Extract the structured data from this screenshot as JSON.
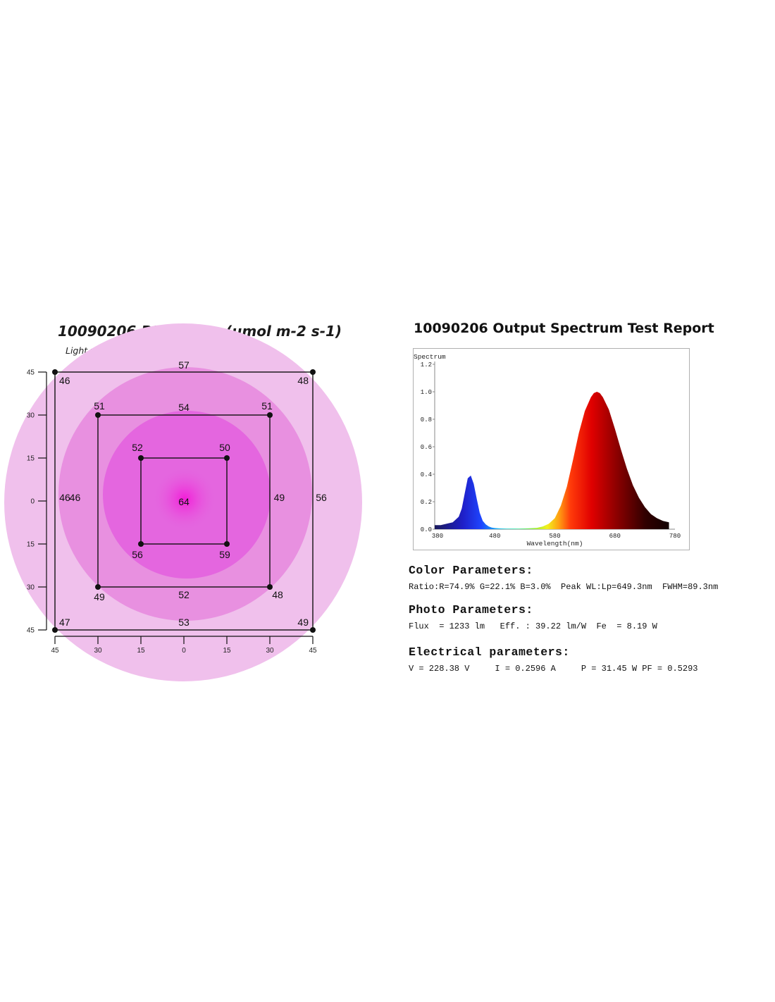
{
  "par_title": "10090206 PAR Value (umol m-2 s-1)",
  "par_subtitle": "Light was posilioned at 24\" heigt",
  "spectrum_title": "10090206 Output Spectrum Test Report",
  "color_parameters": {
    "heading": "Color Parameters:",
    "line": "Ratio:R=74.9% G=22.1% B=3.0%  Peak WL:Lp=649.3nm  FWHM=89.3nm"
  },
  "photo_parameters": {
    "heading": "Photo Parameters:",
    "line": "Flux  = 1233 lm   Eff. : 39.22 lm/W  Fe  = 8.19 W"
  },
  "electrical_parameters": {
    "heading": "Electrical parameters:",
    "line": "V = 228.38 V     I = 0.2596 A     P = 31.45 W PF = 0.5293"
  },
  "chart_data": [
    {
      "type": "heatmap",
      "title": "10090206 PAR Value (umol m-2 s-1)",
      "subtitle": "Light was posilioned at 24\" heigt",
      "x_ticks": [
        "45",
        "30",
        "15",
        "0",
        "15",
        "30",
        "45"
      ],
      "y_ticks": [
        "45",
        "30",
        "15",
        "0",
        "15",
        "30",
        "45"
      ],
      "colors": {
        "outer": "#f0c0ec",
        "middle": "#e890e0",
        "inner": "#e466df",
        "center": "#f31cd8",
        "line": "#111111"
      },
      "points": [
        {
          "x": 0,
          "y": 0,
          "value": 64
        },
        {
          "x": -15,
          "y": 15,
          "value": 52
        },
        {
          "x": 15,
          "y": 15,
          "value": 50
        },
        {
          "x": -15,
          "y": -15,
          "value": 56
        },
        {
          "x": 15,
          "y": -15,
          "value": 59
        },
        {
          "x": -30,
          "y": 30,
          "value": 51
        },
        {
          "x": 0,
          "y": 30,
          "value": 54
        },
        {
          "x": 30,
          "y": 30,
          "value": 51
        },
        {
          "x": -34,
          "y": 0,
          "value": 46
        },
        {
          "x": 34,
          "y": 0,
          "value": 49
        },
        {
          "x": -30,
          "y": -30,
          "value": 49
        },
        {
          "x": 0,
          "y": -30,
          "value": 52
        },
        {
          "x": 30,
          "y": -30,
          "value": 48
        },
        {
          "x": -45,
          "y": 45,
          "value": 46
        },
        {
          "x": 0,
          "y": 45,
          "value": 57
        },
        {
          "x": 45,
          "y": 45,
          "value": 48
        },
        {
          "x": -45,
          "y": 0,
          "value": 46
        },
        {
          "x": 45,
          "y": 0,
          "value": 56
        },
        {
          "x": -45,
          "y": -45,
          "value": 47
        },
        {
          "x": 0,
          "y": -45,
          "value": 53
        },
        {
          "x": 45,
          "y": -45,
          "value": 49
        }
      ]
    },
    {
      "type": "area",
      "title": "10090206 Output Spectrum Test Report",
      "ylabel": "Spectrum",
      "xlabel": "Wavelength(nm)",
      "xlim": [
        380,
        780
      ],
      "ylim": [
        0,
        1.2
      ],
      "x_ticks": [
        380,
        480,
        580,
        680,
        780
      ],
      "y_ticks": [
        "0.0",
        "0.2",
        "0.4",
        "0.6",
        "0.8",
        "1.0",
        "1.2"
      ],
      "series": [
        {
          "x": [
            380,
            390,
            400,
            410,
            420,
            425,
            430,
            435,
            440,
            445,
            450,
            455,
            460,
            465,
            470,
            475,
            480,
            490,
            500,
            510,
            520,
            530,
            540,
            550,
            560,
            570,
            580,
            590,
            600,
            610,
            620,
            630,
            640,
            645,
            650,
            655,
            660,
            670,
            680,
            690,
            700,
            710,
            720,
            730,
            740,
            750,
            760,
            770
          ],
          "y": [
            0.03,
            0.03,
            0.04,
            0.05,
            0.09,
            0.15,
            0.26,
            0.37,
            0.39,
            0.33,
            0.22,
            0.12,
            0.06,
            0.035,
            0.02,
            0.012,
            0.008,
            0.005,
            0.004,
            0.004,
            0.004,
            0.005,
            0.007,
            0.01,
            0.02,
            0.04,
            0.08,
            0.17,
            0.31,
            0.5,
            0.7,
            0.86,
            0.96,
            0.99,
            1.0,
            0.99,
            0.96,
            0.87,
            0.73,
            0.58,
            0.44,
            0.32,
            0.23,
            0.16,
            0.11,
            0.08,
            0.06,
            0.05
          ]
        }
      ]
    }
  ]
}
